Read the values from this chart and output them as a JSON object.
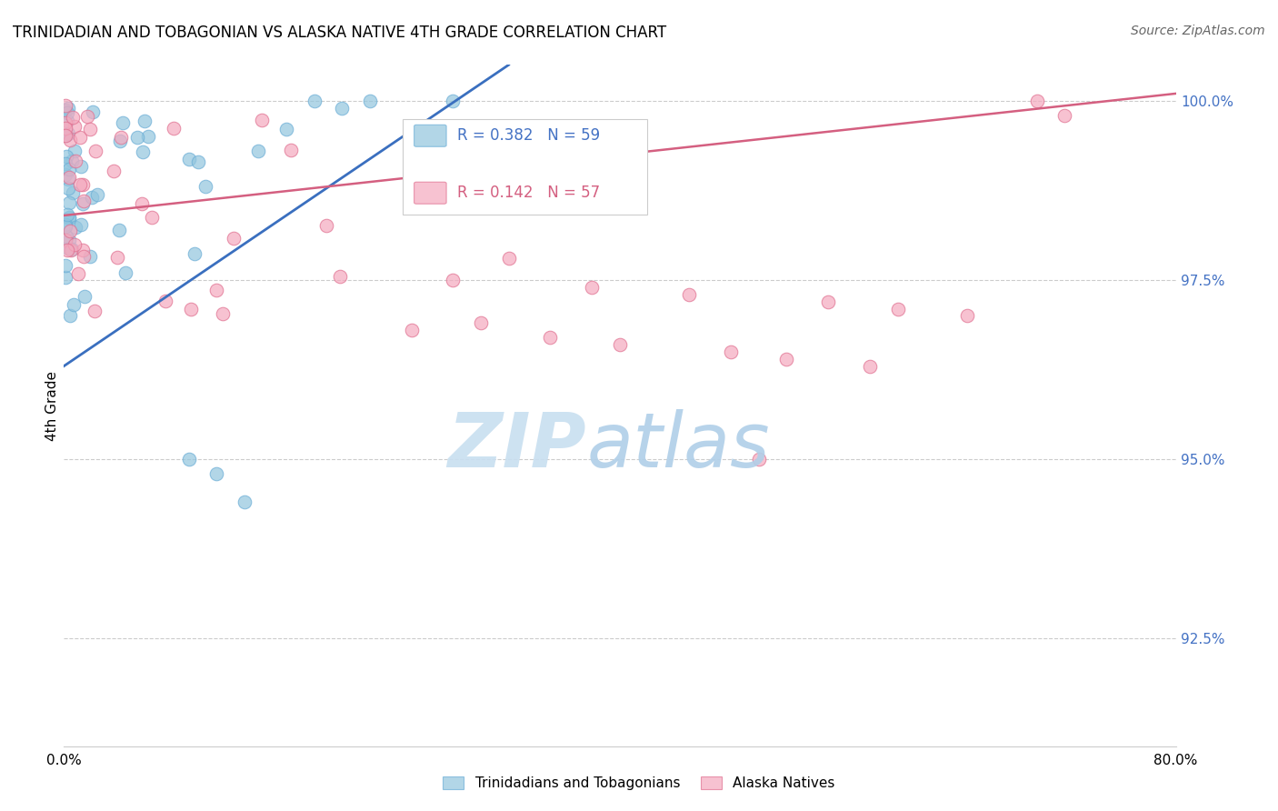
{
  "title": "TRINIDADIAN AND TOBAGONIAN VS ALASKA NATIVE 4TH GRADE CORRELATION CHART",
  "source": "Source: ZipAtlas.com",
  "ylabel": "4th Grade",
  "ytick_labels": [
    "100.0%",
    "97.5%",
    "95.0%",
    "92.5%"
  ],
  "ytick_values": [
    1.0,
    0.975,
    0.95,
    0.925
  ],
  "legend_blue_r": "0.382",
  "legend_blue_n": "59",
  "legend_pink_r": "0.142",
  "legend_pink_n": "57",
  "legend_blue_label": "Trinidadians and Tobagonians",
  "legend_pink_label": "Alaska Natives",
  "blue_color": "#92c5de",
  "pink_color": "#f4a9be",
  "blue_edge_color": "#6baed6",
  "pink_edge_color": "#e07090",
  "blue_line_color": "#3a6fbf",
  "pink_line_color": "#d45f80",
  "blue_text_color": "#4472C4",
  "pink_text_color": "#d45f80",
  "watermark_zip_color": "#c8dff0",
  "watermark_atlas_color": "#b0cfe8",
  "grid_color": "#cccccc",
  "right_tick_color": "#4472C4",
  "xlim": [
    0.0,
    0.8
  ],
  "ylim": [
    0.91,
    1.005
  ],
  "blue_line_x0": 0.0,
  "blue_line_y0": 0.963,
  "blue_line_x1": 0.32,
  "blue_line_y1": 1.005,
  "pink_line_x0": 0.0,
  "pink_line_y0": 0.984,
  "pink_line_x1": 0.8,
  "pink_line_y1": 1.001
}
